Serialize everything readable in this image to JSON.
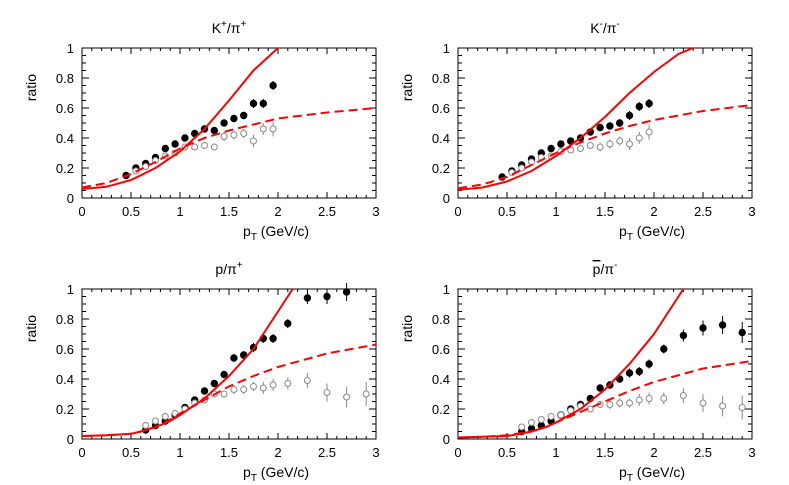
{
  "chart_data": [
    {
      "type": "scatter",
      "title": "K⁺/π⁺",
      "title_parts": {
        "base": "K",
        "sup1": "+",
        "mid": "/π",
        "sup2": "+"
      },
      "xlabel": {
        "main": "p",
        "sub": "T",
        "rest": " (GeV/c)"
      },
      "ylabel": "ratio",
      "xlim": [
        0,
        3
      ],
      "ylim": [
        0,
        1
      ],
      "xticks": [
        "0",
        "0.5",
        "1",
        "1.5",
        "2",
        "2.5",
        "3"
      ],
      "yticks": [
        "0",
        "0.2",
        "0.4",
        "0.6",
        "0.8",
        "1"
      ],
      "colors": {
        "curves": "#ff0000",
        "filled": "#000000",
        "open": "#888888"
      },
      "series": [
        {
          "name": "filled markers",
          "style": "filled",
          "x": [
            0.45,
            0.55,
            0.65,
            0.75,
            0.85,
            0.95,
            1.05,
            1.15,
            1.25,
            1.35,
            1.45,
            1.55,
            1.65,
            1.75,
            1.85,
            1.95
          ],
          "y": [
            0.15,
            0.2,
            0.23,
            0.27,
            0.33,
            0.36,
            0.4,
            0.43,
            0.46,
            0.45,
            0.5,
            0.53,
            0.55,
            0.63,
            0.63,
            0.75
          ],
          "err": [
            0.01,
            0.01,
            0.01,
            0.01,
            0.01,
            0.01,
            0.015,
            0.015,
            0.015,
            0.02,
            0.02,
            0.02,
            0.025,
            0.03,
            0.03,
            0.03
          ]
        },
        {
          "name": "open markers",
          "style": "open",
          "x": [
            0.55,
            0.65,
            0.75,
            0.85,
            0.95,
            1.05,
            1.15,
            1.25,
            1.35,
            1.45,
            1.55,
            1.65,
            1.75,
            1.85,
            1.95
          ],
          "y": [
            0.18,
            0.21,
            0.25,
            0.28,
            0.3,
            0.34,
            0.34,
            0.35,
            0.34,
            0.41,
            0.42,
            0.43,
            0.38,
            0.46,
            0.46
          ],
          "err": [
            0.01,
            0.01,
            0.01,
            0.015,
            0.015,
            0.02,
            0.02,
            0.02,
            0.02,
            0.03,
            0.03,
            0.03,
            0.04,
            0.04,
            0.05
          ]
        },
        {
          "name": "solid curve",
          "style": "solid",
          "x": [
            0,
            0.25,
            0.5,
            0.75,
            1,
            1.25,
            1.5,
            1.75,
            2
          ],
          "y": [
            0.06,
            0.075,
            0.12,
            0.2,
            0.31,
            0.46,
            0.65,
            0.85,
            1.0
          ]
        },
        {
          "name": "dashed curve",
          "style": "dashed",
          "x": [
            0,
            0.25,
            0.5,
            0.75,
            1,
            1.25,
            1.5,
            1.75,
            2,
            2.5,
            3
          ],
          "y": [
            0.07,
            0.1,
            0.16,
            0.24,
            0.33,
            0.4,
            0.45,
            0.49,
            0.53,
            0.57,
            0.6
          ]
        }
      ]
    },
    {
      "type": "scatter",
      "title": "K⁻/π⁻",
      "title_parts": {
        "base": "K",
        "sup1": "-",
        "mid": "/π",
        "sup2": "-"
      },
      "xlabel": {
        "main": "p",
        "sub": "T",
        "rest": " (GeV/c)"
      },
      "ylabel": "ratio",
      "xlim": [
        0,
        3
      ],
      "ylim": [
        0,
        1
      ],
      "xticks": [
        "0",
        "0.5",
        "1",
        "1.5",
        "2",
        "2.5",
        "3"
      ],
      "yticks": [
        "0",
        "0.2",
        "0.4",
        "0.6",
        "0.8",
        "1"
      ],
      "colors": {
        "curves": "#ff0000",
        "filled": "#000000",
        "open": "#888888"
      },
      "series": [
        {
          "name": "filled markers",
          "style": "filled",
          "x": [
            0.45,
            0.55,
            0.65,
            0.75,
            0.85,
            0.95,
            1.05,
            1.15,
            1.25,
            1.35,
            1.45,
            1.55,
            1.65,
            1.75,
            1.85,
            1.95
          ],
          "y": [
            0.14,
            0.18,
            0.22,
            0.26,
            0.3,
            0.33,
            0.36,
            0.38,
            0.4,
            0.44,
            0.47,
            0.48,
            0.5,
            0.55,
            0.61,
            0.63
          ],
          "err": [
            0.01,
            0.01,
            0.01,
            0.01,
            0.01,
            0.01,
            0.015,
            0.015,
            0.015,
            0.02,
            0.02,
            0.02,
            0.025,
            0.03,
            0.03,
            0.03
          ]
        },
        {
          "name": "open markers",
          "style": "open",
          "x": [
            0.55,
            0.65,
            0.75,
            0.85,
            0.95,
            1.05,
            1.15,
            1.25,
            1.35,
            1.45,
            1.55,
            1.65,
            1.75,
            1.85,
            1.95
          ],
          "y": [
            0.17,
            0.2,
            0.24,
            0.27,
            0.28,
            0.31,
            0.32,
            0.33,
            0.35,
            0.34,
            0.36,
            0.38,
            0.36,
            0.4,
            0.44
          ],
          "err": [
            0.01,
            0.01,
            0.01,
            0.015,
            0.015,
            0.02,
            0.02,
            0.02,
            0.02,
            0.03,
            0.03,
            0.03,
            0.04,
            0.04,
            0.05
          ]
        },
        {
          "name": "solid curve",
          "style": "solid",
          "x": [
            0,
            0.25,
            0.5,
            0.75,
            1,
            1.25,
            1.5,
            1.75,
            2,
            2.25,
            2.4
          ],
          "y": [
            0.055,
            0.07,
            0.11,
            0.18,
            0.28,
            0.4,
            0.54,
            0.7,
            0.84,
            0.96,
            1.0
          ]
        },
        {
          "name": "dashed curve",
          "style": "dashed",
          "x": [
            0,
            0.25,
            0.5,
            0.75,
            1,
            1.25,
            1.5,
            1.75,
            2,
            2.5,
            3
          ],
          "y": [
            0.065,
            0.09,
            0.14,
            0.22,
            0.3,
            0.37,
            0.43,
            0.48,
            0.52,
            0.58,
            0.62
          ]
        }
      ]
    },
    {
      "type": "scatter",
      "title": "p/π⁺",
      "title_parts": {
        "base": "p",
        "sup1": "",
        "mid": "/π",
        "sup2": "+"
      },
      "xlabel": {
        "main": "p",
        "sub": "T",
        "rest": " (GeV/c)"
      },
      "ylabel": "ratio",
      "xlim": [
        0,
        3
      ],
      "ylim": [
        0,
        1
      ],
      "xticks": [
        "0",
        "0.5",
        "1",
        "1.5",
        "2",
        "2.5",
        "3"
      ],
      "yticks": [
        "0",
        "0.2",
        "0.4",
        "0.6",
        "0.8",
        "1"
      ],
      "colors": {
        "curves": "#ff0000",
        "filled": "#000000",
        "open": "#888888"
      },
      "series": [
        {
          "name": "filled markers",
          "style": "filled",
          "x": [
            0.65,
            0.75,
            0.85,
            0.95,
            1.05,
            1.15,
            1.25,
            1.35,
            1.45,
            1.55,
            1.65,
            1.75,
            1.85,
            1.95,
            2.1,
            2.3,
            2.5,
            2.7
          ],
          "y": [
            0.06,
            0.09,
            0.12,
            0.16,
            0.21,
            0.26,
            0.32,
            0.37,
            0.43,
            0.54,
            0.56,
            0.61,
            0.67,
            0.67,
            0.77,
            0.94,
            0.95,
            0.98
          ],
          "err": [
            0.01,
            0.01,
            0.01,
            0.01,
            0.015,
            0.015,
            0.015,
            0.02,
            0.02,
            0.025,
            0.025,
            0.03,
            0.03,
            0.03,
            0.03,
            0.04,
            0.05,
            0.06
          ]
        },
        {
          "name": "open markers",
          "style": "open",
          "x": [
            0.65,
            0.75,
            0.85,
            0.95,
            1.05,
            1.15,
            1.25,
            1.35,
            1.45,
            1.55,
            1.65,
            1.75,
            1.85,
            1.95,
            2.1,
            2.3,
            2.5,
            2.7,
            2.9
          ],
          "y": [
            0.09,
            0.12,
            0.15,
            0.17,
            0.2,
            0.24,
            0.26,
            0.3,
            0.3,
            0.33,
            0.33,
            0.35,
            0.34,
            0.36,
            0.37,
            0.39,
            0.31,
            0.28,
            0.3
          ],
          "err": [
            0.01,
            0.01,
            0.01,
            0.015,
            0.015,
            0.02,
            0.02,
            0.02,
            0.02,
            0.03,
            0.03,
            0.03,
            0.04,
            0.04,
            0.04,
            0.05,
            0.06,
            0.07,
            0.08
          ]
        },
        {
          "name": "solid curve",
          "style": "solid",
          "x": [
            0,
            0.25,
            0.5,
            0.6,
            0.75,
            0.9,
            1,
            1.25,
            1.5,
            1.75,
            2,
            2.15
          ],
          "y": [
            0.02,
            0.025,
            0.035,
            0.05,
            0.08,
            0.12,
            0.16,
            0.27,
            0.42,
            0.6,
            0.85,
            1.0
          ]
        },
        {
          "name": "dashed curve",
          "style": "dashed",
          "x": [
            0,
            0.25,
            0.5,
            0.6,
            0.75,
            0.9,
            1,
            1.25,
            1.5,
            1.75,
            2,
            2.5,
            3
          ],
          "y": [
            0.02,
            0.025,
            0.035,
            0.05,
            0.08,
            0.13,
            0.17,
            0.26,
            0.35,
            0.42,
            0.48,
            0.57,
            0.63
          ]
        }
      ]
    },
    {
      "type": "scatter",
      "title": "p̅/π⁻",
      "title_parts": {
        "base": "p",
        "bar": true,
        "sup1": "",
        "mid": "/π",
        "sup2": "-"
      },
      "xlabel": {
        "main": "p",
        "sub": "T",
        "rest": " (GeV/c)"
      },
      "ylabel": "ratio",
      "xlim": [
        0,
        3
      ],
      "ylim": [
        0,
        1
      ],
      "xticks": [
        "0",
        "0.5",
        "1",
        "1.5",
        "2",
        "2.5",
        "3"
      ],
      "yticks": [
        "0",
        "0.2",
        "0.4",
        "0.6",
        "0.8",
        "1"
      ],
      "colors": {
        "curves": "#ff0000",
        "filled": "#000000",
        "open": "#888888"
      },
      "series": [
        {
          "name": "filled markers",
          "style": "filled",
          "x": [
            0.65,
            0.75,
            0.85,
            0.95,
            1.05,
            1.15,
            1.25,
            1.35,
            1.45,
            1.55,
            1.65,
            1.75,
            1.85,
            1.95,
            2.1,
            2.3,
            2.5,
            2.7,
            2.9
          ],
          "y": [
            0.05,
            0.07,
            0.09,
            0.12,
            0.16,
            0.2,
            0.23,
            0.27,
            0.34,
            0.36,
            0.4,
            0.44,
            0.45,
            0.5,
            0.6,
            0.69,
            0.74,
            0.76,
            0.71
          ],
          "err": [
            0.01,
            0.01,
            0.01,
            0.01,
            0.015,
            0.015,
            0.015,
            0.02,
            0.02,
            0.025,
            0.025,
            0.03,
            0.03,
            0.03,
            0.03,
            0.04,
            0.05,
            0.06,
            0.07
          ]
        },
        {
          "name": "open markers",
          "style": "open",
          "x": [
            0.65,
            0.75,
            0.85,
            0.95,
            1.05,
            1.15,
            1.25,
            1.35,
            1.45,
            1.55,
            1.65,
            1.75,
            1.85,
            1.95,
            2.1,
            2.3,
            2.5,
            2.7,
            2.9
          ],
          "y": [
            0.08,
            0.11,
            0.13,
            0.15,
            0.16,
            0.19,
            0.22,
            0.2,
            0.23,
            0.23,
            0.24,
            0.24,
            0.26,
            0.27,
            0.27,
            0.29,
            0.24,
            0.22,
            0.21
          ],
          "err": [
            0.01,
            0.01,
            0.01,
            0.015,
            0.015,
            0.02,
            0.02,
            0.02,
            0.02,
            0.03,
            0.03,
            0.03,
            0.04,
            0.04,
            0.04,
            0.05,
            0.06,
            0.07,
            0.08
          ]
        },
        {
          "name": "solid curve",
          "style": "solid",
          "x": [
            0,
            0.25,
            0.5,
            0.6,
            0.75,
            0.9,
            1,
            1.25,
            1.5,
            1.75,
            2,
            2.3
          ],
          "y": [
            0.01,
            0.015,
            0.02,
            0.03,
            0.05,
            0.08,
            0.11,
            0.2,
            0.33,
            0.5,
            0.7,
            1.0
          ]
        },
        {
          "name": "dashed curve",
          "style": "dashed",
          "x": [
            0,
            0.25,
            0.5,
            0.6,
            0.75,
            0.9,
            1,
            1.25,
            1.5,
            1.75,
            2,
            2.5,
            3
          ],
          "y": [
            0.01,
            0.015,
            0.025,
            0.035,
            0.05,
            0.08,
            0.11,
            0.18,
            0.25,
            0.32,
            0.38,
            0.47,
            0.52
          ]
        }
      ]
    }
  ]
}
